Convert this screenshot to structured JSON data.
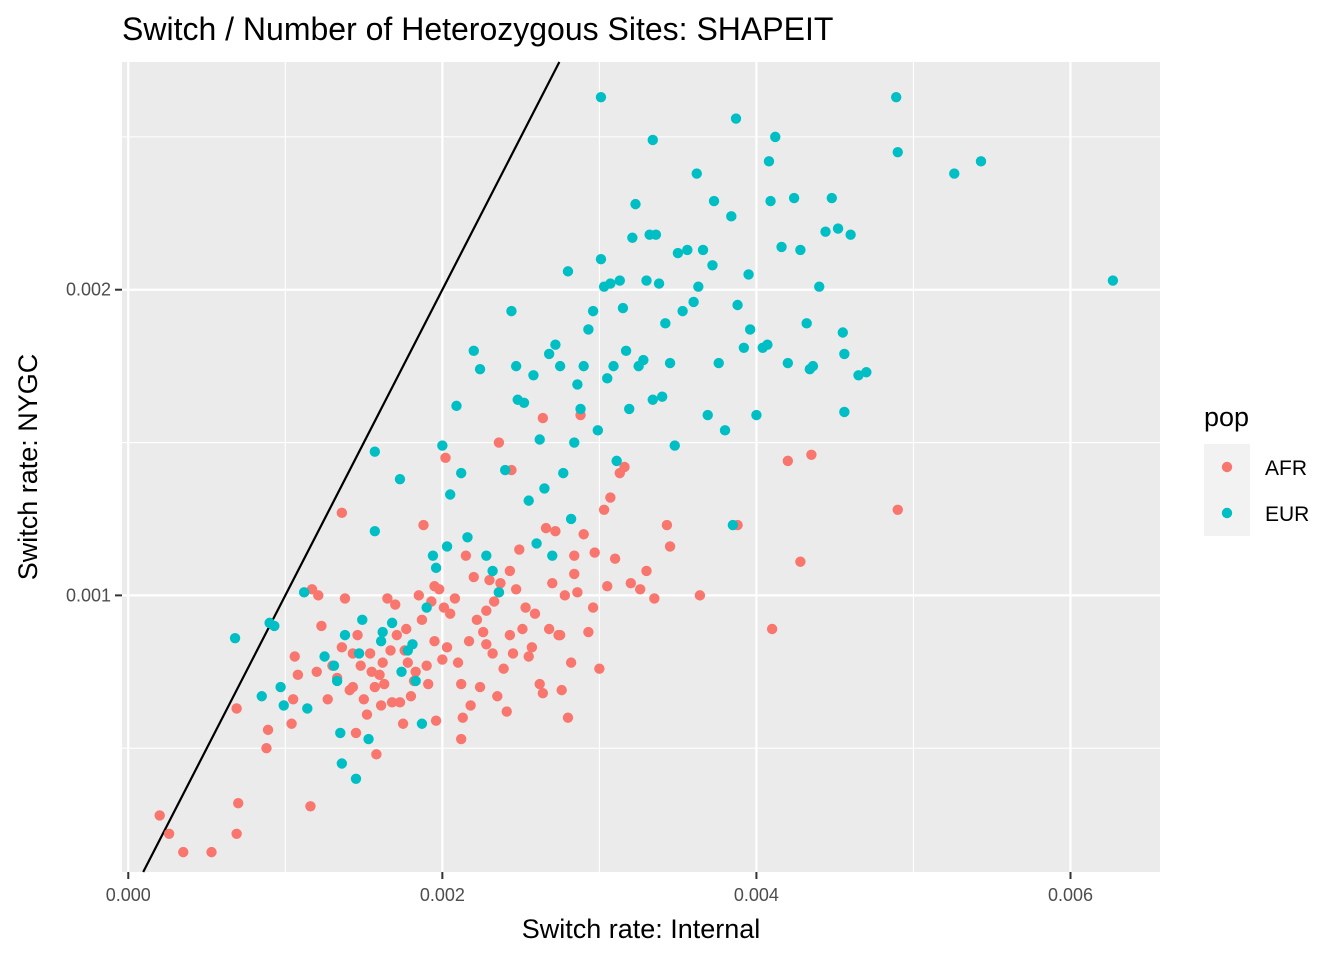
{
  "chart_data": {
    "type": "scatter",
    "title": "Switch / Number of Heterozygous Sites: SHAPEIT",
    "xlabel": "Switch rate: Internal",
    "ylabel": "Switch rate: NYGC",
    "xlim": [
      -4e-05,
      0.00657
    ],
    "ylim": [
      9.5e-05,
      0.002745
    ],
    "x_ticks": [
      {
        "value": 0.0,
        "label": "0.000"
      },
      {
        "value": 0.002,
        "label": "0.002"
      },
      {
        "value": 0.004,
        "label": "0.004"
      },
      {
        "value": 0.006,
        "label": "0.006"
      }
    ],
    "y_ticks": [
      {
        "value": 0.001,
        "label": "0.001"
      },
      {
        "value": 0.002,
        "label": "0.002"
      }
    ],
    "grid": true,
    "legend": {
      "title": "pop",
      "position": "right"
    },
    "reference_line": {
      "slope": 1,
      "intercept": 0
    },
    "series": [
      {
        "name": "AFR",
        "color": "#F8766D",
        "x": [
          0.0002,
          0.00026,
          0.00035,
          0.00053,
          0.00069,
          0.0007,
          0.00069,
          0.00088,
          0.00089,
          0.00104,
          0.00105,
          0.00106,
          0.00108,
          0.00116,
          0.00117,
          0.0012,
          0.00121,
          0.00123,
          0.00127,
          0.0013,
          0.00133,
          0.00136,
          0.00138,
          0.00141,
          0.00143,
          0.00145,
          0.00146,
          0.00148,
          0.0015,
          0.00152,
          0.00154,
          0.00155,
          0.00157,
          0.00158,
          0.0016,
          0.00161,
          0.00162,
          0.00163,
          0.00165,
          0.00167,
          0.00168,
          0.0017,
          0.00171,
          0.00173,
          0.00175,
          0.00176,
          0.00177,
          0.00178,
          0.0018,
          0.00182,
          0.00183,
          0.00185,
          0.00187,
          0.00188,
          0.0019,
          0.00191,
          0.00193,
          0.00195,
          0.00196,
          0.00198,
          0.002,
          0.00202,
          0.00203,
          0.00205,
          0.00208,
          0.0021,
          0.00212,
          0.00213,
          0.00215,
          0.00217,
          0.00218,
          0.0022,
          0.00222,
          0.00224,
          0.00226,
          0.00228,
          0.0023,
          0.00232,
          0.00233,
          0.00235,
          0.00237,
          0.00239,
          0.00241,
          0.00243,
          0.00245,
          0.00247,
          0.00249,
          0.00251,
          0.00253,
          0.00255,
          0.00257,
          0.00259,
          0.00262,
          0.00264,
          0.00266,
          0.00268,
          0.0027,
          0.00272,
          0.00274,
          0.00276,
          0.00278,
          0.0028,
          0.00282,
          0.00284,
          0.00286,
          0.00288,
          0.0029,
          0.00293,
          0.00296,
          0.003,
          0.00303,
          0.00307,
          0.0031,
          0.00313,
          0.00316,
          0.0032,
          0.00326,
          0.0033,
          0.00335,
          0.00343,
          0.00345,
          0.00364,
          0.00388,
          0.0041,
          0.0042,
          0.00428,
          0.00435,
          0.0049,
          0.00212,
          0.00228,
          0.00236,
          0.00244,
          0.00264,
          0.00275,
          0.00284,
          0.00297,
          0.00305,
          0.00243,
          0.00236,
          0.00201,
          0.00195,
          0.00143,
          0.00136
        ],
        "y": [
          0.00028,
          0.00022,
          0.00016,
          0.00016,
          0.00022,
          0.00032,
          0.00063,
          0.0005,
          0.00056,
          0.00058,
          0.00066,
          0.0008,
          0.00074,
          0.00031,
          0.00102,
          0.00075,
          0.001,
          0.0009,
          0.00066,
          0.00077,
          0.00073,
          0.00127,
          0.00099,
          0.00069,
          0.0007,
          0.00055,
          0.00087,
          0.00077,
          0.00066,
          0.00061,
          0.00081,
          0.00075,
          0.0007,
          0.00048,
          0.00074,
          0.00064,
          0.00078,
          0.00071,
          0.00099,
          0.00082,
          0.00065,
          0.00097,
          0.00087,
          0.00065,
          0.00058,
          0.00082,
          0.00089,
          0.00078,
          0.00067,
          0.00072,
          0.00075,
          0.001,
          0.00092,
          0.00123,
          0.00077,
          0.00071,
          0.00098,
          0.00085,
          0.00059,
          0.00102,
          0.00079,
          0.00145,
          0.00083,
          0.00094,
          0.00099,
          0.00078,
          0.00071,
          0.0006,
          0.00113,
          0.00085,
          0.00064,
          0.00106,
          0.00092,
          0.0007,
          0.00088,
          0.00084,
          0.00105,
          0.00081,
          0.00098,
          0.00067,
          0.00104,
          0.00076,
          0.00062,
          0.00087,
          0.00081,
          0.00102,
          0.00115,
          0.00089,
          0.00096,
          0.0008,
          0.00083,
          0.00094,
          0.00071,
          0.00068,
          0.00122,
          0.00089,
          0.00104,
          0.00121,
          0.00087,
          0.00069,
          0.001,
          0.0006,
          0.00078,
          0.00107,
          0.00101,
          0.00159,
          0.0012,
          0.00088,
          0.00096,
          0.00076,
          0.00128,
          0.00132,
          0.00112,
          0.0014,
          0.00142,
          0.00104,
          0.00102,
          0.00108,
          0.00099,
          0.00123,
          0.00116,
          0.001,
          0.00123,
          0.00089,
          0.00144,
          0.00111,
          0.00146,
          0.00128,
          0.00053,
          0.00095,
          0.00101,
          0.00141,
          0.00158,
          0.00087,
          0.00113,
          0.00114,
          0.00103,
          0.00108,
          0.0015,
          0.00096,
          0.00103,
          0.00081,
          0.00083
        ]
      },
      {
        "name": "EUR",
        "color": "#00BFC4",
        "x": [
          0.00068,
          0.00085,
          0.0009,
          0.00093,
          0.00097,
          0.00099,
          0.00112,
          0.00114,
          0.00125,
          0.00131,
          0.00133,
          0.00135,
          0.00136,
          0.00138,
          0.00145,
          0.00147,
          0.00149,
          0.00153,
          0.00157,
          0.00157,
          0.00161,
          0.00162,
          0.00168,
          0.00173,
          0.00174,
          0.00178,
          0.00181,
          0.00183,
          0.00187,
          0.0019,
          0.00194,
          0.00196,
          0.002,
          0.00203,
          0.00205,
          0.00209,
          0.00212,
          0.00216,
          0.0022,
          0.00224,
          0.00228,
          0.00232,
          0.00236,
          0.0024,
          0.00244,
          0.00247,
          0.00248,
          0.00252,
          0.00255,
          0.00258,
          0.0026,
          0.00262,
          0.00265,
          0.00268,
          0.0027,
          0.00272,
          0.00275,
          0.00277,
          0.0028,
          0.00282,
          0.00284,
          0.00286,
          0.00288,
          0.0029,
          0.00293,
          0.00296,
          0.00299,
          0.00301,
          0.00303,
          0.00305,
          0.00307,
          0.00309,
          0.00311,
          0.00313,
          0.00315,
          0.00317,
          0.00319,
          0.00321,
          0.00323,
          0.00325,
          0.00328,
          0.0033,
          0.00332,
          0.00334,
          0.00336,
          0.00338,
          0.0034,
          0.00342,
          0.00345,
          0.00348,
          0.0035,
          0.00353,
          0.00356,
          0.0036,
          0.00363,
          0.00366,
          0.00369,
          0.00372,
          0.00376,
          0.0038,
          0.00384,
          0.00388,
          0.00392,
          0.00396,
          0.004,
          0.00404,
          0.00408,
          0.00412,
          0.00416,
          0.0042,
          0.00424,
          0.00428,
          0.00432,
          0.00436,
          0.0044,
          0.00444,
          0.00448,
          0.00452,
          0.00456,
          0.0046,
          0.00465,
          0.0047,
          0.00489,
          0.0049,
          0.00526,
          0.00543,
          0.00627,
          0.00301,
          0.00334,
          0.00362,
          0.00373,
          0.00387,
          0.00409,
          0.00455,
          0.00407,
          0.00385,
          0.00395,
          0.00434,
          0.00456
        ],
        "y": [
          0.00086,
          0.00067,
          0.00091,
          0.0009,
          0.0007,
          0.00064,
          0.00101,
          0.00063,
          0.0008,
          0.00077,
          0.00072,
          0.00055,
          0.00045,
          0.00087,
          0.0004,
          0.00081,
          0.00092,
          0.00053,
          0.00147,
          0.00121,
          0.00085,
          0.00088,
          0.00091,
          0.00138,
          0.00075,
          0.00082,
          0.00084,
          0.00072,
          0.00058,
          0.00096,
          0.00113,
          0.00109,
          0.00149,
          0.00116,
          0.00133,
          0.00162,
          0.0014,
          0.00119,
          0.0018,
          0.00174,
          0.00113,
          0.00108,
          0.00101,
          0.00141,
          0.00193,
          0.00175,
          0.00164,
          0.00163,
          0.00131,
          0.00172,
          0.00117,
          0.00151,
          0.00135,
          0.00179,
          0.00113,
          0.00182,
          0.00175,
          0.0014,
          0.00206,
          0.00125,
          0.0015,
          0.00169,
          0.00161,
          0.00175,
          0.00187,
          0.00193,
          0.00154,
          0.0021,
          0.00201,
          0.00171,
          0.00202,
          0.00175,
          0.00144,
          0.00203,
          0.00194,
          0.0018,
          0.00161,
          0.00217,
          0.00228,
          0.00175,
          0.00177,
          0.00203,
          0.00218,
          0.00164,
          0.00218,
          0.00202,
          0.00165,
          0.00189,
          0.00176,
          0.00149,
          0.00212,
          0.00193,
          0.00213,
          0.00196,
          0.00201,
          0.00213,
          0.00159,
          0.00208,
          0.00176,
          0.00154,
          0.00224,
          0.00195,
          0.00181,
          0.00187,
          0.00159,
          0.00181,
          0.00242,
          0.0025,
          0.00214,
          0.00176,
          0.0023,
          0.00213,
          0.00189,
          0.00175,
          0.00201,
          0.00219,
          0.0023,
          0.0022,
          0.00179,
          0.00218,
          0.00172,
          0.00173,
          0.00263,
          0.00245,
          0.00238,
          0.00242,
          0.00203,
          0.00263,
          0.00249,
          0.00238,
          0.00229,
          0.00256,
          0.00229,
          0.00186,
          0.00182,
          0.00123,
          0.00205,
          0.00174,
          0.0016
        ]
      }
    ]
  }
}
